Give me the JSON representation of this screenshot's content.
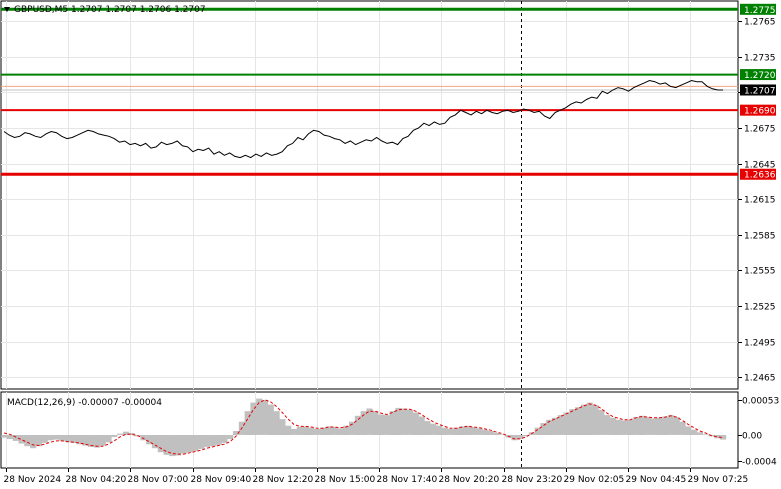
{
  "chart_data": [
    {
      "type": "line",
      "title": "GBPUSD,M5  1.2707 1.2707 1.2706 1.2707",
      "symbol_menu_icon": "triangle-down-icon",
      "ylim": [
        1.2455,
        1.2782
      ],
      "y_ticks": [
        "1.2765",
        "1.2735",
        "1.2705",
        "1.2675",
        "1.2645",
        "1.2615",
        "1.2585",
        "1.2555",
        "1.2525",
        "1.2495",
        "1.2465"
      ],
      "x_tick_labels": [
        "28 Nov 2024",
        "28 Nov 04:20",
        "28 Nov 07:00",
        "28 Nov 09:40",
        "28 Nov 12:20",
        "28 Nov 15:00",
        "28 Nov 17:40",
        "28 Nov 20:20",
        "28 Nov 23:20",
        "29 Nov 02:05",
        "29 Nov 04:45",
        "29 Nov 07:25"
      ],
      "levels": [
        {
          "value": 1.2775,
          "label": "1.2775",
          "color": "#008000",
          "bg": "#008000",
          "text_color": "#ffffff",
          "role": "target"
        },
        {
          "value": 1.272,
          "label": "1.2720",
          "color": "#008000",
          "bg": "#008000",
          "text_color": "#ffffff",
          "role": "entry"
        },
        {
          "value": 1.2707,
          "label": "1.2707",
          "color": "#000000",
          "bg": "#000000",
          "text_color": "#ffffff",
          "role": "current"
        },
        {
          "value": 1.269,
          "label": "1.2690",
          "color": "#e60000",
          "bg": "#e60000",
          "text_color": "#ffffff",
          "role": "entry"
        },
        {
          "value": 1.2636,
          "label": "1.2636",
          "color": "#e60000",
          "bg": "#e60000",
          "text_color": "#ffffff",
          "role": "target"
        }
      ],
      "ask_line": {
        "value": 1.271,
        "color": "#f4a582"
      },
      "vertical_marker_date": "28 Nov 23:20",
      "series": [
        {
          "values": [
            1.2672,
            1.2669,
            1.2667,
            1.2668,
            1.2671,
            1.267,
            1.2668,
            1.2667,
            1.267,
            1.2672,
            1.2671,
            1.2668,
            1.2666,
            1.2667,
            1.2669,
            1.2671,
            1.2673,
            1.2672,
            1.267,
            1.2669,
            1.2668,
            1.2666,
            1.2663,
            1.2664,
            1.2661,
            1.2662,
            1.266,
            1.2662,
            1.2658,
            1.2659,
            1.2663,
            1.2661,
            1.2662,
            1.2664,
            1.266,
            1.2659,
            1.2655,
            1.2657,
            1.2656,
            1.2658,
            1.2653,
            1.2655,
            1.2652,
            1.2654,
            1.2651,
            1.265,
            1.2652,
            1.265,
            1.2653,
            1.2651,
            1.2654,
            1.2652,
            1.2653,
            1.2655,
            1.266,
            1.2662,
            1.2667,
            1.2665,
            1.267,
            1.2673,
            1.2672,
            1.2669,
            1.2668,
            1.2666,
            1.2665,
            1.2662,
            1.2664,
            1.2661,
            1.2663,
            1.2665,
            1.2664,
            1.2667,
            1.2664,
            1.2662,
            1.2663,
            1.2661,
            1.2666,
            1.2668,
            1.2673,
            1.2675,
            1.2679,
            1.2677,
            1.268,
            1.2678,
            1.2679,
            1.2684,
            1.2686,
            1.269,
            1.2688,
            1.2686,
            1.2689,
            1.2687,
            1.269,
            1.2688,
            1.2687,
            1.2689,
            1.269,
            1.2688,
            1.2689,
            1.2691,
            1.269,
            1.2688,
            1.2689,
            1.2685,
            1.2683,
            1.2688,
            1.269,
            1.2692,
            1.2695,
            1.2697,
            1.2696,
            1.2699,
            1.2701,
            1.27,
            1.2706,
            1.2704,
            1.2707,
            1.2709,
            1.2708,
            1.2706,
            1.2709,
            1.2711,
            1.2713,
            1.2715,
            1.2714,
            1.2712,
            1.2713,
            1.271,
            1.2709,
            1.2711,
            1.2713,
            1.2715,
            1.2714,
            1.2714,
            1.271,
            1.2708,
            1.2707,
            1.2707
          ],
          "color": "#000000"
        }
      ]
    },
    {
      "type": "bar",
      "title": "MACD(12,26,9) -0.00007 -0.00004",
      "ylim": [
        -0.0005,
        0.00065
      ],
      "y_ticks": [
        "0.00053",
        "0.00",
        "-0.0004"
      ],
      "series": [
        {
          "values": [
            -4e-05,
            -6e-05,
            -9e-05,
            -0.00013,
            -0.00017,
            -0.0002,
            -0.00017,
            -0.00012,
            -8e-05,
            -7e-05,
            -9e-05,
            -0.00011,
            -0.00012,
            -0.00014,
            -0.00016,
            -0.00018,
            -0.00019,
            -0.00016,
            -0.00011,
            -3e-05,
            2e-05,
            5e-05,
            3e-05,
            -2e-05,
            -8e-05,
            -0.00014,
            -0.0002,
            -0.00026,
            -0.0003,
            -0.00032,
            -0.00031,
            -0.00028,
            -0.00026,
            -0.00024,
            -0.00021,
            -0.00018,
            -0.00017,
            -0.00015,
            -0.00012,
            -6e-05,
            6e-05,
            0.0002,
            0.00036,
            0.00049,
            0.00055,
            0.00053,
            0.00046,
            0.00036,
            0.00024,
            0.00014,
            9e-05,
            0.00012,
            0.00013,
            0.00011,
            9e-05,
            0.00011,
            0.00013,
            0.00012,
            0.0001,
            0.00014,
            0.0002,
            0.00029,
            0.00036,
            0.0004,
            0.00036,
            0.00031,
            0.0003,
            0.00036,
            0.00041,
            0.0004,
            0.00038,
            0.00034,
            0.00028,
            0.00021,
            0.00017,
            0.00014,
            0.00011,
            9e-05,
            0.00011,
            0.00013,
            0.00014,
            0.00012,
            0.0001,
            8e-05,
            6e-05,
            3e-05,
            1e-05,
            -4e-05,
            -8e-05,
            -6e-05,
            -2e-05,
            4e-05,
            0.00011,
            0.00018,
            0.00023,
            0.00026,
            0.0003,
            0.00034,
            0.00039,
            0.00042,
            0.00046,
            0.00049,
            0.00045,
            0.00038,
            0.0003,
            0.00026,
            0.00023,
            0.00022,
            0.00023,
            0.00027,
            0.00029,
            0.00027,
            0.00025,
            0.00026,
            0.00028,
            0.0003,
            0.00027,
            0.0002,
            0.00013,
            8e-05,
            4e-05,
            1e-05,
            -2e-05,
            -5e-05,
            -7e-05
          ],
          "color": "#c0c0c0"
        },
        {
          "type": "line",
          "values": [
            3e-05,
            1e-05,
            -3e-05,
            -7e-05,
            -0.00011,
            -0.00015,
            -0.00016,
            -0.00014,
            -0.00011,
            -9e-05,
            -9e-05,
            -0.0001,
            -0.00011,
            -0.00012,
            -0.00014,
            -0.00016,
            -0.00017,
            -0.00017,
            -0.00014,
            -9e-05,
            -3e-05,
            1e-05,
            1e-05,
            -1e-05,
            -5e-05,
            -0.0001,
            -0.00015,
            -0.0002,
            -0.00025,
            -0.00028,
            -0.00029,
            -0.00029,
            -0.00027,
            -0.00025,
            -0.00023,
            -0.0002,
            -0.00018,
            -0.00016,
            -0.00014,
            -0.0001,
            -2e-05,
            0.0001,
            0.00024,
            0.00038,
            0.00049,
            0.00053,
            0.0005,
            0.00043,
            0.00034,
            0.00024,
            0.00016,
            0.00013,
            0.00013,
            0.00012,
            0.0001,
            0.0001,
            0.00012,
            0.00012,
            0.00011,
            0.00012,
            0.00016,
            0.00023,
            0.0003,
            0.00036,
            0.00036,
            0.00033,
            0.00031,
            0.00034,
            0.00038,
            0.00039,
            0.00039,
            0.00036,
            0.00031,
            0.00025,
            0.0002,
            0.00016,
            0.00013,
            0.0001,
            0.0001,
            0.00012,
            0.00013,
            0.00012,
            0.00011,
            9e-05,
            7e-05,
            4e-05,
            2e-05,
            -2e-05,
            -6e-05,
            -6e-05,
            -3e-05,
            2e-05,
            8e-05,
            0.00014,
            0.0002,
            0.00024,
            0.00028,
            0.00032,
            0.00036,
            0.0004,
            0.00044,
            0.00047,
            0.00045,
            0.0004,
            0.00033,
            0.00028,
            0.00025,
            0.00023,
            0.00023,
            0.00026,
            0.00028,
            0.00027,
            0.00026,
            0.00026,
            0.00027,
            0.00029,
            0.00027,
            0.00022,
            0.00016,
            0.00011,
            6e-05,
            3e-05,
            -1e-05,
            -3e-05,
            -4e-05
          ],
          "color": "#e60000"
        }
      ]
    }
  ]
}
